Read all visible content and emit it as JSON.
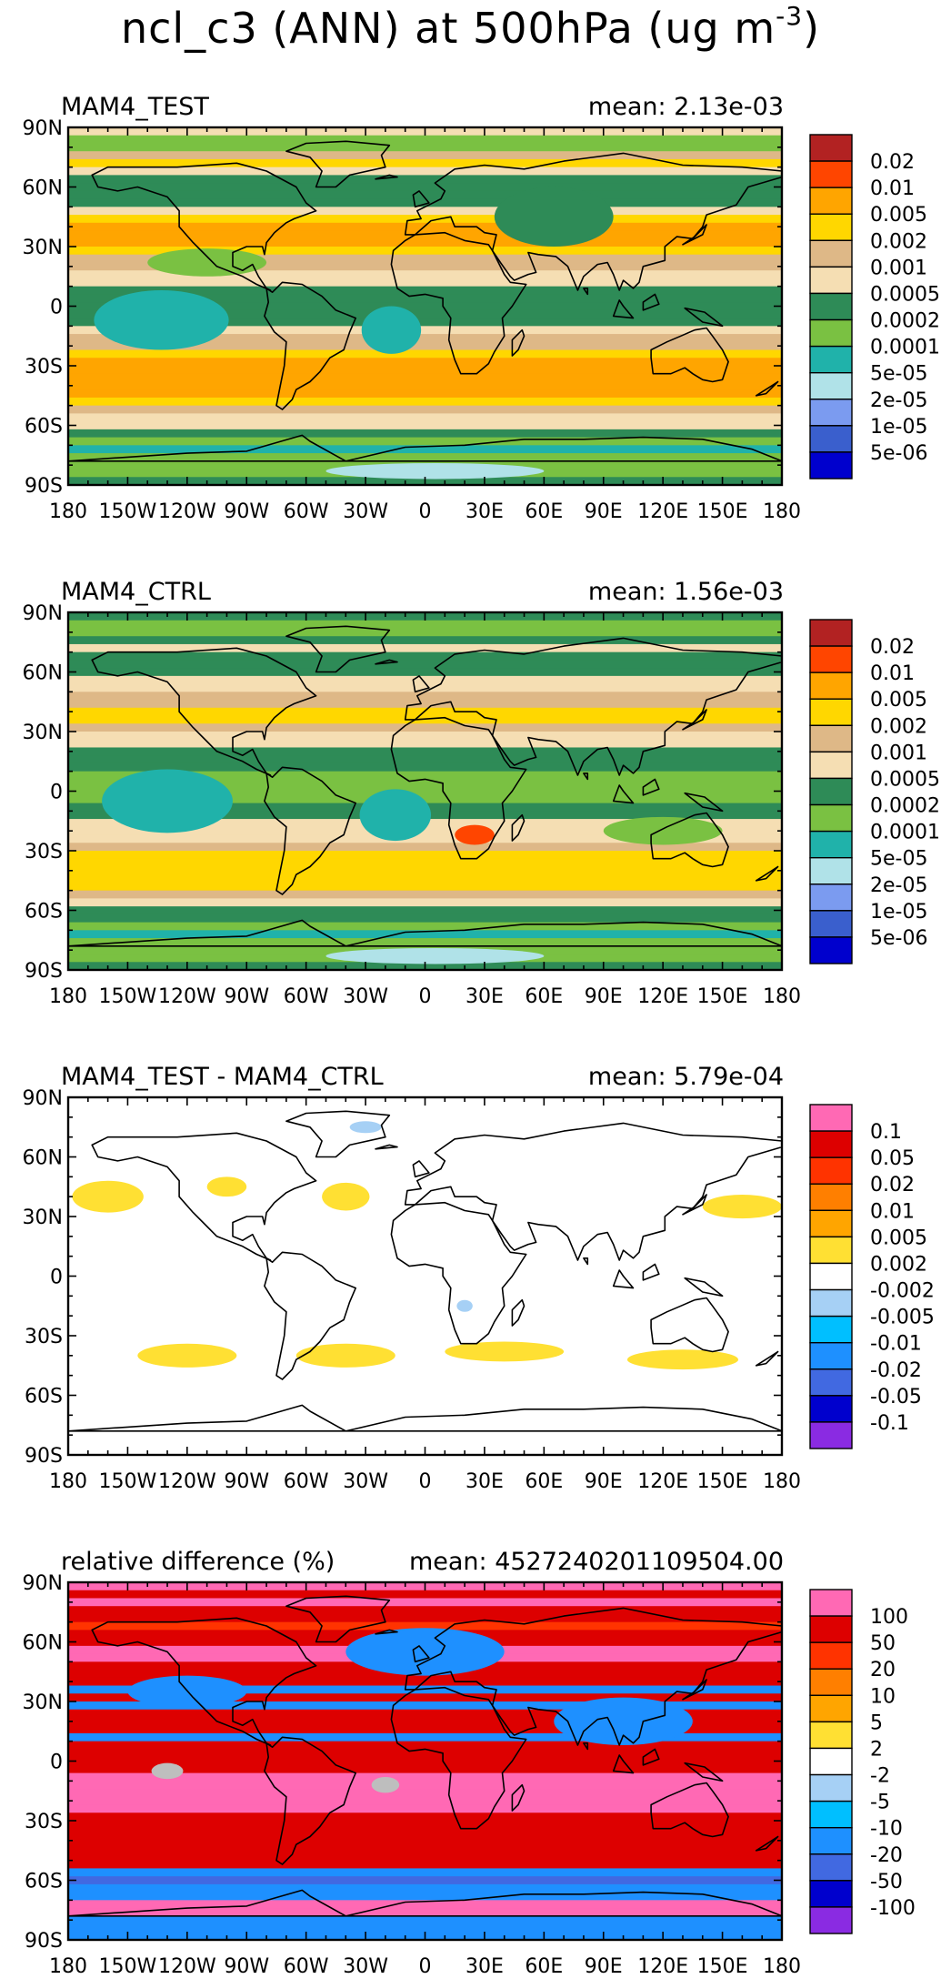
{
  "title_main": "ncl_c3 (ANN) at 500hPa (ug m",
  "title_exp": "-3",
  "title_close": ")",
  "colors": {
    "abs": [
      "#0000cd",
      "#3a5fcd",
      "#7b9bf0",
      "#b0e2e8",
      "#20b2aa",
      "#7ac142",
      "#2e8b57",
      "#f5deb3",
      "#deb887",
      "#ffd700",
      "#ffa500",
      "#ff4500",
      "#b22222"
    ],
    "diff": [
      "#8a2be2",
      "#0000cd",
      "#4169e1",
      "#1e90ff",
      "#00bfff",
      "#a6d0f5",
      "#ffffff",
      "#ffe033",
      "#ffa500",
      "#ff7f00",
      "#ff3300",
      "#dd0000",
      "#ff69b4"
    ]
  },
  "chart_data": [
    {
      "type": "heatmap",
      "title": "MAM4_TEST",
      "mean_text": "mean: 2.13e-03",
      "scale": "abs",
      "legend_labels": [
        "0.02",
        "0.01",
        "0.005",
        "0.002",
        "0.001",
        "0.0005",
        "0.0002",
        "0.0001",
        "5e-05",
        "2e-05",
        "1e-05",
        "5e-06"
      ],
      "x_ticks": [
        "180",
        "150W",
        "120W",
        "90W",
        "60W",
        "30W",
        "0",
        "30E",
        "60E",
        "90E",
        "120E",
        "150E",
        "180"
      ],
      "y_ticks": [
        "90N",
        "60N",
        "30N",
        "0",
        "30S",
        "60S",
        "90S"
      ],
      "xlim": [
        -180,
        180
      ],
      "ylim": [
        -90,
        90
      ],
      "lat_band_levels": [
        7,
        5,
        5,
        8,
        9,
        7,
        6,
        6,
        6,
        6,
        7,
        9,
        10,
        10,
        10,
        9,
        8,
        8,
        7,
        7,
        6,
        6,
        6,
        6,
        6,
        7,
        8,
        8,
        9,
        10,
        10,
        10,
        10,
        10,
        9,
        8,
        7,
        7,
        6,
        5,
        4,
        5,
        5,
        5,
        6
      ],
      "features": [
        {
          "kind": "blob",
          "lon": -135,
          "lat": -8,
          "rx": 24,
          "ry": 11,
          "level": 0
        },
        {
          "kind": "blob",
          "lon": -133,
          "lat": -7,
          "rx": 34,
          "ry": 15,
          "level": 4
        },
        {
          "kind": "blob",
          "lon": -17,
          "lat": -12,
          "rx": 9,
          "ry": 8,
          "level": 0
        },
        {
          "kind": "blob",
          "lon": -17,
          "lat": -12,
          "rx": 15,
          "ry": 12,
          "level": 4
        },
        {
          "kind": "blob",
          "lon": 65,
          "lat": 45,
          "rx": 30,
          "ry": 15,
          "level": 6
        },
        {
          "kind": "blob",
          "lon": 5,
          "lat": -83,
          "rx": 55,
          "ry": 4,
          "level": 3
        },
        {
          "kind": "blob",
          "lon": -110,
          "lat": 22,
          "rx": 30,
          "ry": 7,
          "level": 5
        }
      ]
    },
    {
      "type": "heatmap",
      "title": "MAM4_CTRL",
      "mean_text": "mean: 1.56e-03",
      "scale": "abs",
      "legend_labels": [
        "0.02",
        "0.01",
        "0.005",
        "0.002",
        "0.001",
        "0.0005",
        "0.0002",
        "0.0001",
        "5e-05",
        "2e-05",
        "1e-05",
        "5e-06"
      ],
      "x_ticks": [
        "180",
        "150W",
        "120W",
        "90W",
        "60W",
        "30W",
        "0",
        "30E",
        "60E",
        "90E",
        "120E",
        "150E",
        "180"
      ],
      "y_ticks": [
        "90N",
        "60N",
        "30N",
        "0",
        "30S",
        "60S",
        "90S"
      ],
      "xlim": [
        -180,
        180
      ],
      "ylim": [
        -90,
        90
      ],
      "lat_band_levels": [
        6,
        5,
        5,
        6,
        7,
        6,
        6,
        6,
        7,
        7,
        8,
        8,
        9,
        9,
        8,
        7,
        7,
        6,
        6,
        6,
        5,
        5,
        5,
        5,
        6,
        6,
        7,
        7,
        7,
        8,
        9,
        9,
        9,
        9,
        9,
        8,
        7,
        6,
        6,
        5,
        4,
        5,
        5,
        5,
        6
      ],
      "features": [
        {
          "kind": "blob",
          "lon": -130,
          "lat": -5,
          "rx": 22,
          "ry": 11,
          "level": 0
        },
        {
          "kind": "blob",
          "lon": -130,
          "lat": -5,
          "rx": 33,
          "ry": 16,
          "level": 4
        },
        {
          "kind": "blob",
          "lon": -15,
          "lat": -12,
          "rx": 11,
          "ry": 10,
          "level": 0
        },
        {
          "kind": "blob",
          "lon": -15,
          "lat": -12,
          "rx": 18,
          "ry": 13,
          "level": 4
        },
        {
          "kind": "blob",
          "lon": 120,
          "lat": -20,
          "rx": 15,
          "ry": 4,
          "level": 0
        },
        {
          "kind": "blob",
          "lon": 120,
          "lat": -20,
          "rx": 30,
          "ry": 7,
          "level": 5
        },
        {
          "kind": "blob",
          "lon": 25,
          "lat": -22,
          "rx": 10,
          "ry": 5,
          "level": 11
        },
        {
          "kind": "blob",
          "lon": 5,
          "lat": -83,
          "rx": 55,
          "ry": 4,
          "level": 3
        }
      ]
    },
    {
      "type": "heatmap",
      "title": "MAM4_TEST - MAM4_CTRL",
      "mean_text": "mean: 5.79e-04",
      "scale": "diff",
      "legend_labels": [
        "0.1",
        "0.05",
        "0.02",
        "0.01",
        "0.005",
        "0.002",
        "-0.002",
        "-0.005",
        "-0.01",
        "-0.02",
        "-0.05",
        "-0.1"
      ],
      "x_ticks": [
        "180",
        "150W",
        "120W",
        "90W",
        "60W",
        "30W",
        "0",
        "30E",
        "60E",
        "90E",
        "120E",
        "150E",
        "180"
      ],
      "y_ticks": [
        "90N",
        "60N",
        "30N",
        "0",
        "30S",
        "60S",
        "90S"
      ],
      "xlim": [
        -180,
        180
      ],
      "ylim": [
        -90,
        90
      ],
      "lat_band_levels": [
        6,
        6,
        6,
        6,
        6,
        6,
        6,
        6,
        6,
        6,
        6,
        6,
        6,
        6,
        6,
        6,
        6,
        6,
        6,
        6,
        6,
        6,
        6,
        6,
        6,
        6,
        6,
        6,
        6,
        6,
        6,
        6,
        6,
        6,
        6,
        6,
        6,
        6,
        6,
        6,
        6,
        6,
        6,
        6,
        6
      ],
      "features": [
        {
          "kind": "blob",
          "lon": -160,
          "lat": 40,
          "rx": 18,
          "ry": 8,
          "level": 7
        },
        {
          "kind": "blob",
          "lon": -100,
          "lat": 45,
          "rx": 10,
          "ry": 5,
          "level": 7
        },
        {
          "kind": "blob",
          "lon": -40,
          "lat": 40,
          "rx": 12,
          "ry": 7,
          "level": 7
        },
        {
          "kind": "blob",
          "lon": 160,
          "lat": 35,
          "rx": 20,
          "ry": 6,
          "level": 7
        },
        {
          "kind": "blob",
          "lon": -120,
          "lat": -40,
          "rx": 25,
          "ry": 6,
          "level": 7
        },
        {
          "kind": "blob",
          "lon": -40,
          "lat": -40,
          "rx": 25,
          "ry": 6,
          "level": 7
        },
        {
          "kind": "blob",
          "lon": 40,
          "lat": -38,
          "rx": 30,
          "ry": 5,
          "level": 7
        },
        {
          "kind": "blob",
          "lon": 130,
          "lat": -42,
          "rx": 28,
          "ry": 5,
          "level": 7
        },
        {
          "kind": "blob",
          "lon": -30,
          "lat": 75,
          "rx": 8,
          "ry": 3,
          "level": 5
        },
        {
          "kind": "blob",
          "lon": 20,
          "lat": -15,
          "rx": 4,
          "ry": 3,
          "level": 5
        }
      ]
    },
    {
      "type": "heatmap",
      "title": "relative difference (%)",
      "mean_text": "mean: 4527240201109504.00",
      "scale": "diff",
      "legend_labels": [
        "100",
        "50",
        "20",
        "10",
        "5",
        "2",
        "-2",
        "-5",
        "-10",
        "-20",
        "-50",
        "-100"
      ],
      "x_ticks": [
        "180",
        "150W",
        "120W",
        "90W",
        "60W",
        "30W",
        "0",
        "30E",
        "60E",
        "90E",
        "120E",
        "150E",
        "180"
      ],
      "y_ticks": [
        "90N",
        "60N",
        "30N",
        "0",
        "30S",
        "60S",
        "90S"
      ],
      "xlim": [
        -180,
        180
      ],
      "ylim": [
        -90,
        90
      ],
      "lat_band_levels": [
        12,
        11,
        12,
        11,
        11,
        10,
        11,
        11,
        12,
        12,
        11,
        11,
        11,
        3,
        11,
        3,
        11,
        11,
        11,
        3,
        11,
        11,
        11,
        11,
        12,
        12,
        12,
        12,
        12,
        11,
        11,
        11,
        11,
        11,
        11,
        11,
        3,
        2,
        3,
        3,
        12,
        12,
        3,
        3,
        3
      ],
      "features": [
        {
          "kind": "blob",
          "lon": -130,
          "lat": -5,
          "rx": 8,
          "ry": 4,
          "level": -1
        },
        {
          "kind": "blob",
          "lon": -20,
          "lat": -12,
          "rx": 7,
          "ry": 4,
          "level": -1
        },
        {
          "kind": "blob",
          "lon": 0,
          "lat": 55,
          "rx": 40,
          "ry": 12,
          "level": 3
        },
        {
          "kind": "blob",
          "lon": 100,
          "lat": 20,
          "rx": 35,
          "ry": 12,
          "level": 3
        },
        {
          "kind": "blob",
          "lon": -120,
          "lat": 35,
          "rx": 30,
          "ry": 8,
          "level": 3
        }
      ]
    }
  ]
}
